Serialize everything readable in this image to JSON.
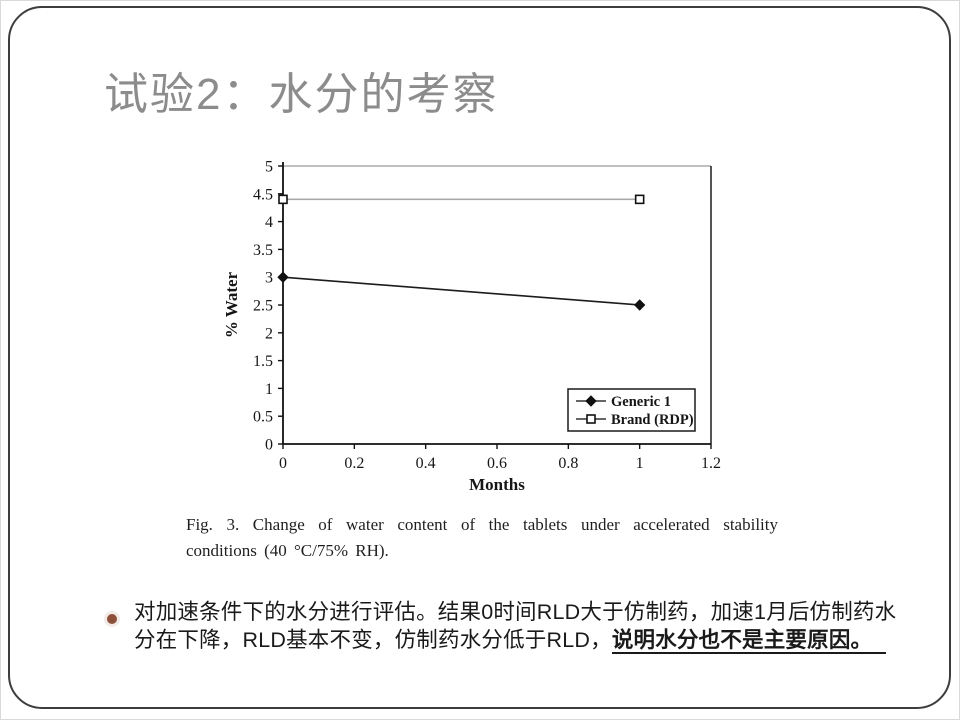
{
  "slide": {
    "title": "试验2：水分的考察",
    "figure": {
      "caption": "Fig. 3. Change of water content of the tablets under accelerated stability conditions (40 °C/75% RH)."
    },
    "bullet": {
      "text_main": "对加速条件下的水分进行评估。结果0时间RLD大于仿制药，加速1月后仿制药水分在下降，RLD基本不变，仿制药水分低于RLD，",
      "text_emphasis": "说明水分也不是主要原因。"
    }
  },
  "chart_data": {
    "type": "line",
    "title": "",
    "xlabel": "Months",
    "ylabel": "% Water",
    "xlim": [
      0,
      1.2
    ],
    "ylim": [
      0,
      5
    ],
    "grid": false,
    "legend_position": "inside-lower-right",
    "xticks": {
      "values": [
        0,
        0.2,
        0.4,
        0.6,
        0.8,
        1,
        1.2
      ],
      "labels": [
        "0",
        "0.2",
        "0.4",
        "0.6",
        "0.8",
        "1",
        "1.2"
      ]
    },
    "yticks": {
      "values": [
        0,
        0.5,
        1,
        1.5,
        2,
        2.5,
        3,
        3.5,
        4,
        4.5,
        5
      ],
      "labels": [
        "0",
        "0.5",
        "1",
        "1.5",
        "2",
        "2.5",
        "3",
        "3.5",
        "4",
        "4.5",
        "5"
      ]
    },
    "series": [
      {
        "name": "Generic 1",
        "marker": "diamond-filled",
        "line_color": "#1c1c1c",
        "marker_color": "#111111",
        "x": [
          0,
          1
        ],
        "y": [
          3.0,
          2.5
        ]
      },
      {
        "name": "Brand (RDP)",
        "marker": "square-open",
        "line_color": "#a8a8a8",
        "marker_color": "#111111",
        "x": [
          0,
          1
        ],
        "y": [
          4.4,
          4.4
        ]
      }
    ]
  },
  "colors": {
    "title": "#8c8c8c",
    "body_text": "#1a1a1a",
    "bullet_marker": "#8d4f3a",
    "frame_border": "#3d3d3d"
  }
}
